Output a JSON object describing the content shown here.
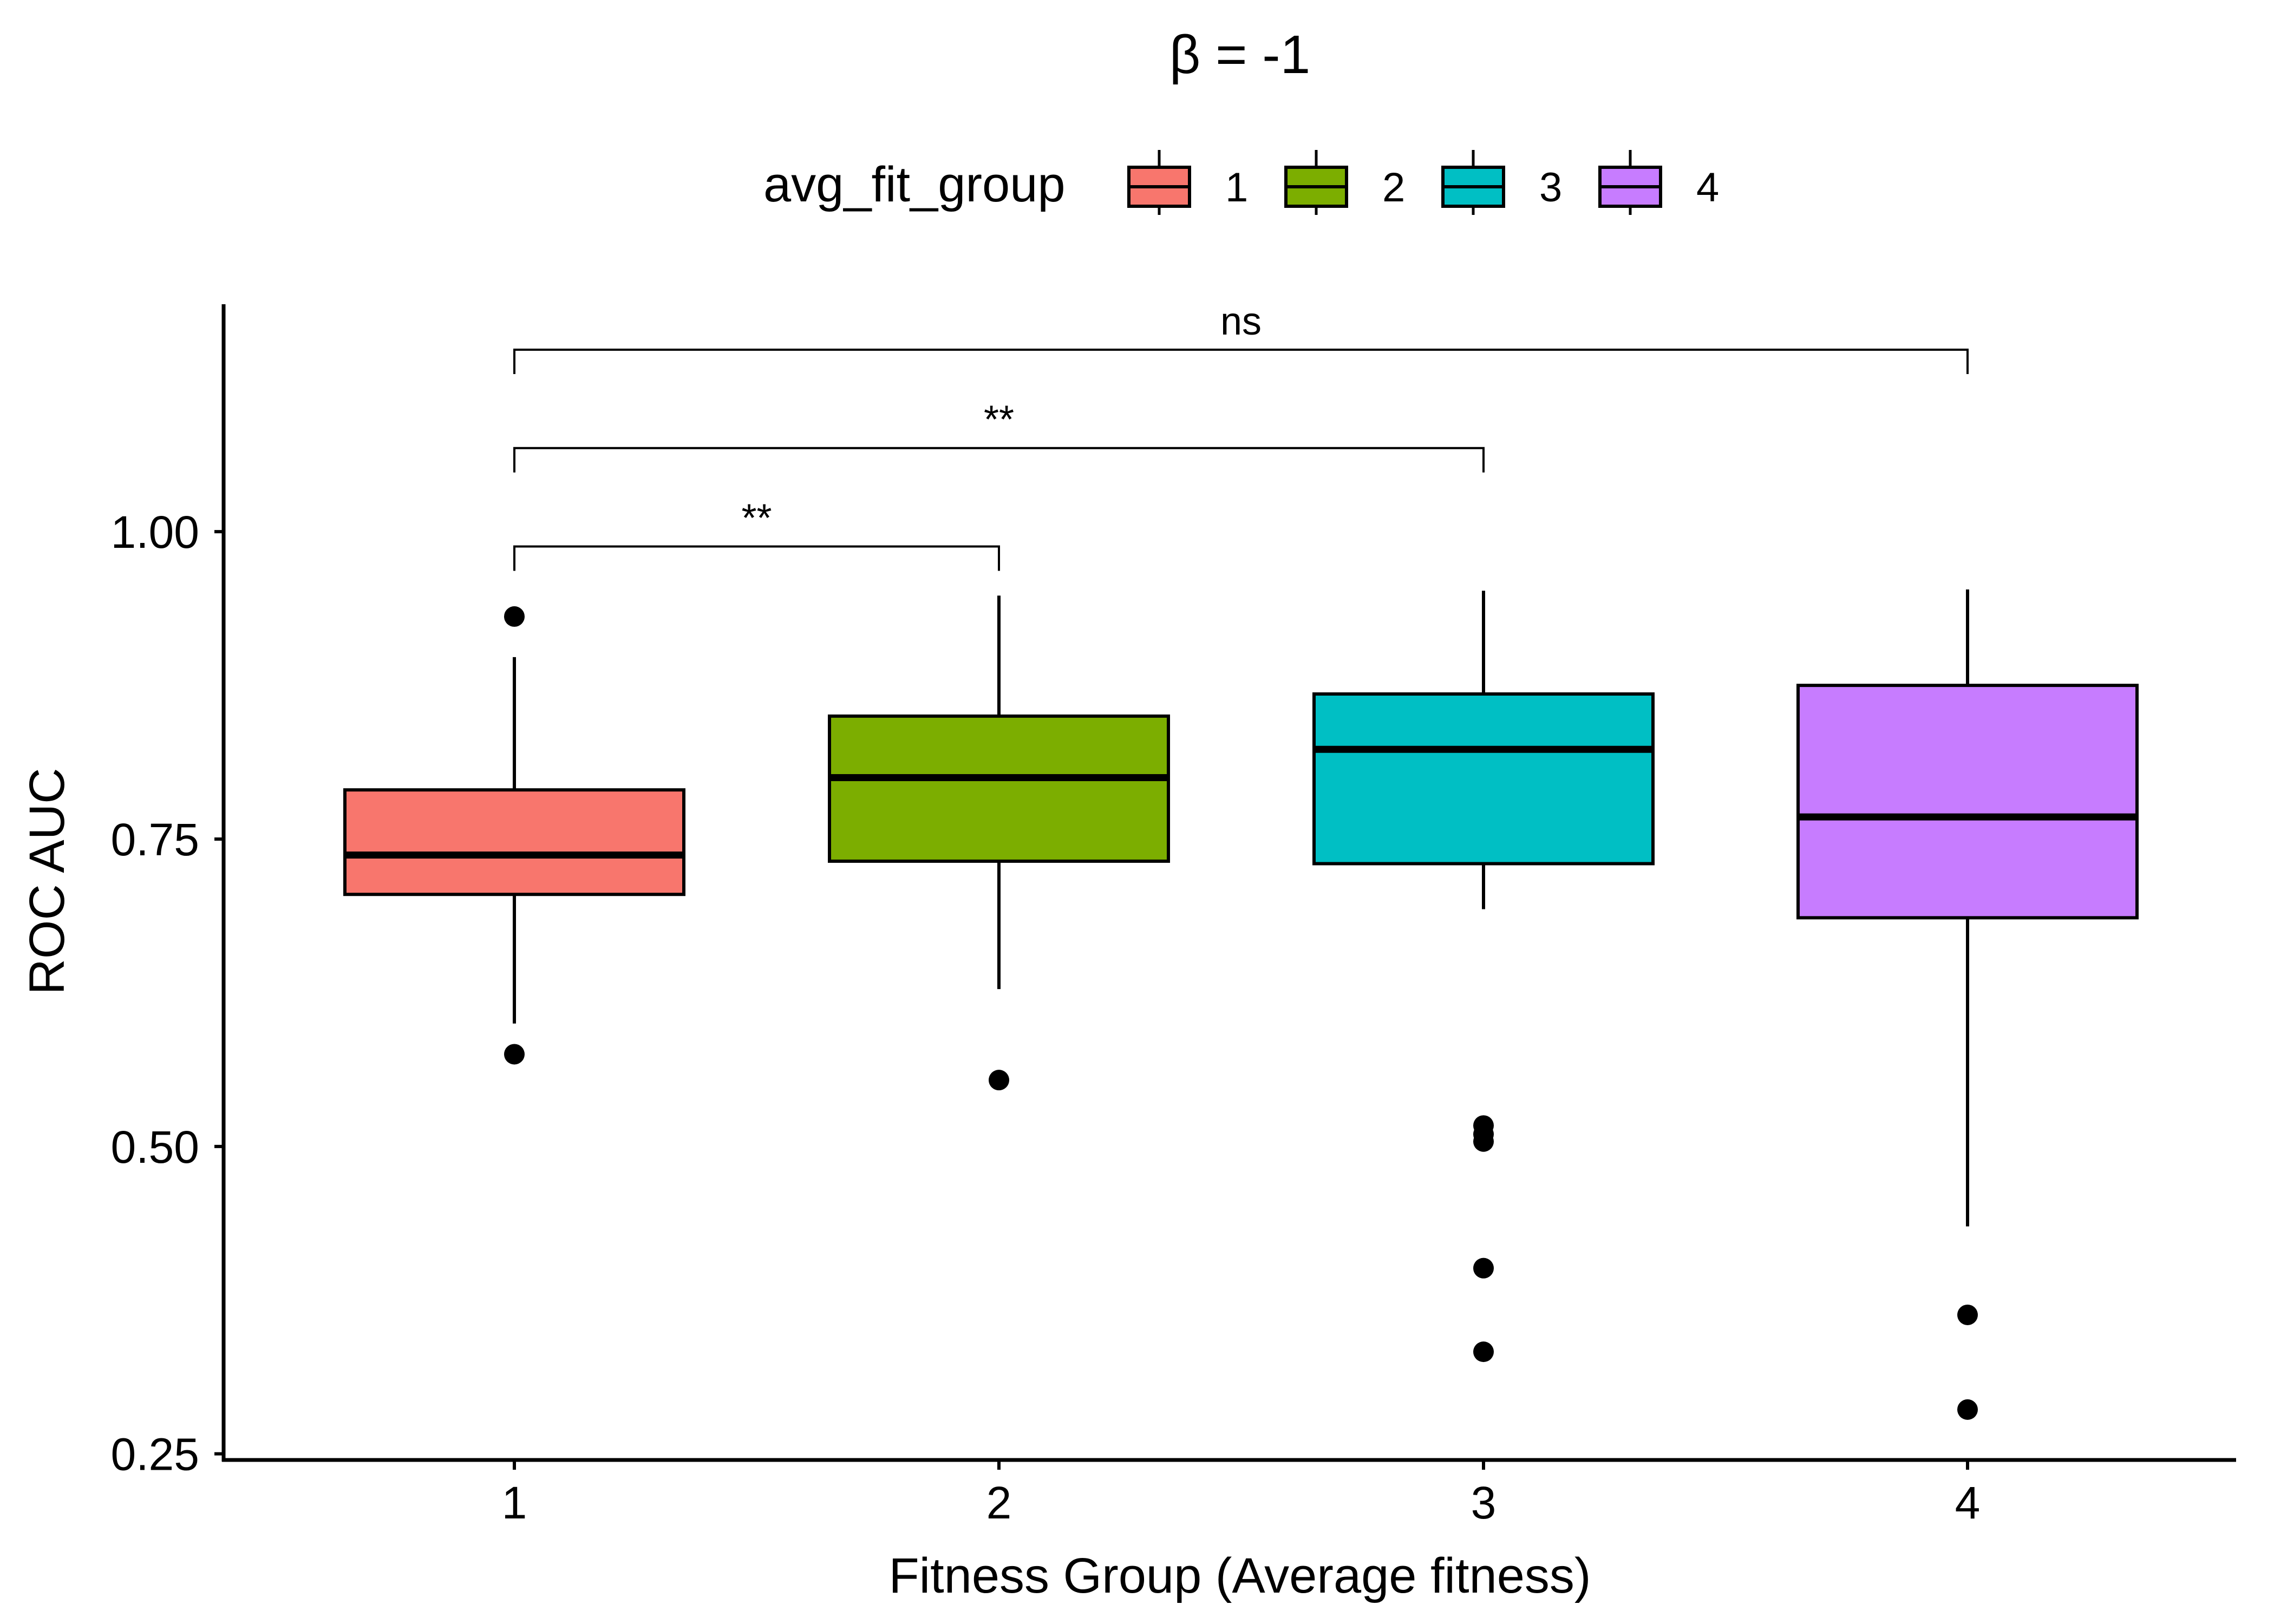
{
  "chart_data": {
    "type": "box",
    "title": "β = -1",
    "xlabel": "Fitness Group (Average fitness)",
    "ylabel": "ROC AUC",
    "ylim": [
      0.245,
      1.185
    ],
    "yticks": [
      "0.25",
      "0.50",
      "0.75",
      "1.00"
    ],
    "ytick_values": [
      0.25,
      0.5,
      0.75,
      1.0
    ],
    "categories": [
      "1",
      "2",
      "3",
      "4"
    ],
    "grid": false,
    "legend": {
      "title": "avg_fit_group",
      "position": "top",
      "entries": [
        "1",
        "2",
        "3",
        "4"
      ]
    },
    "colors": [
      "#F8766D",
      "#7CAE00",
      "#00BFC4",
      "#C77CFF"
    ],
    "boxes": [
      {
        "group": "1",
        "whisker_low": 0.6,
        "q1": 0.705,
        "median": 0.737,
        "q3": 0.79,
        "whisker_high": 0.898,
        "outliers": [
          0.931,
          0.575
        ]
      },
      {
        "group": "2",
        "whisker_low": 0.628,
        "q1": 0.732,
        "median": 0.8,
        "q3": 0.85,
        "whisker_high": 0.948,
        "outliers": [
          0.554
        ]
      },
      {
        "group": "3",
        "whisker_low": 0.693,
        "q1": 0.73,
        "median": 0.823,
        "q3": 0.868,
        "whisker_high": 0.952,
        "outliers": [
          0.517,
          0.51,
          0.504,
          0.401,
          0.333
        ]
      },
      {
        "group": "4",
        "whisker_low": 0.435,
        "q1": 0.686,
        "median": 0.768,
        "q3": 0.875,
        "whisker_high": 0.953,
        "outliers": [
          0.363,
          0.286
        ]
      }
    ],
    "comparisons": [
      {
        "from": "1",
        "to": "2",
        "label": "**",
        "y": 0.988
      },
      {
        "from": "1",
        "to": "3",
        "label": "**",
        "y": 1.068
      },
      {
        "from": "1",
        "to": "4",
        "label": "ns",
        "y": 1.148
      }
    ]
  }
}
